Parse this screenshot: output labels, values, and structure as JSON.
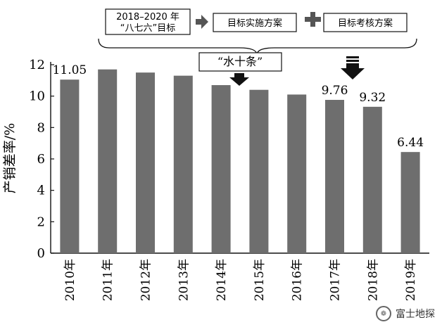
{
  "chart_data": {
    "type": "bar",
    "categories": [
      "2010年",
      "2011年",
      "2012年",
      "2013年",
      "2014年",
      "2015年",
      "2016年",
      "2017年",
      "2018年",
      "2019年"
    ],
    "values": [
      11.05,
      11.7,
      11.5,
      11.3,
      10.7,
      10.4,
      10.1,
      9.76,
      9.32,
      6.44
    ],
    "value_labels": [
      "11.05",
      "",
      "",
      "",
      "",
      "",
      "",
      "9.76",
      "9.32",
      "6.44"
    ],
    "ylabel": "产销差率/%",
    "ylim": [
      0,
      12
    ],
    "yticks": [
      "0",
      "2",
      "4",
      "6",
      "8",
      "10",
      "12"
    ],
    "bar_color": "#6e6e6e",
    "grid": false
  },
  "annotations": {
    "goal_box": [
      "2018–2020 年",
      "“八七六”目标"
    ],
    "plan_box": "目标实施方案",
    "assess_box": "目标考核方案",
    "policy_label": "“水十条”"
  },
  "watermark": {
    "text": "富士地探"
  }
}
